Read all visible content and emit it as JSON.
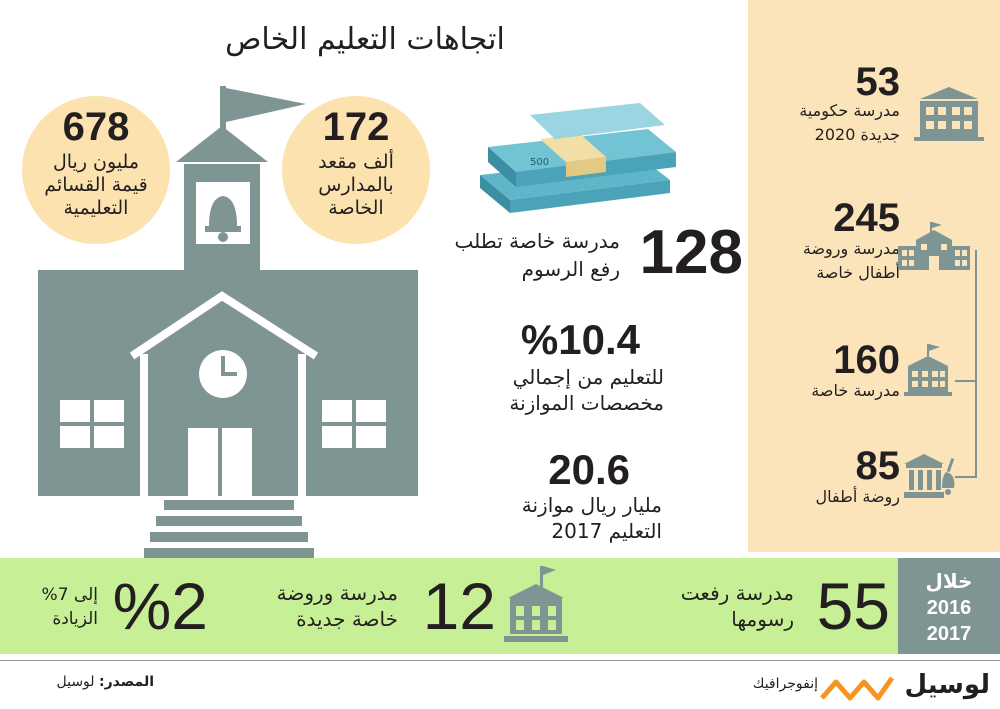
{
  "title": "اتجاهات التعليم الخاص",
  "colors": {
    "panel": "#fbe4b9",
    "circle": "#fbe2ae",
    "building": "#7e9594",
    "band": "#c7ef95",
    "logo": "#f7941d"
  },
  "circles": [
    {
      "value": "678",
      "label_line1": "مليون ريال",
      "label_line2": "قيمة القسائم",
      "label_line3": "التعليمية"
    },
    {
      "value": "172",
      "label_line1": "ألف مقعد",
      "label_line2": "بالمدارس",
      "label_line3": "الخاصة"
    }
  ],
  "center_stats": [
    {
      "value": "128",
      "label_line1": "مدرسة خاصة تطلب",
      "label_line2": "رفع الرسوم"
    },
    {
      "value": "%10.4",
      "label_line1": "للتعليم من إجمالي",
      "label_line2": "مخصصات الموازنة"
    },
    {
      "value": "20.6",
      "label_line1": "مليار ريال موازنة",
      "label_line2": "التعليم 2017"
    }
  ],
  "side_stats": [
    {
      "value": "53",
      "label_line1": "مدرسة حكومية",
      "label_line2": "جديدة 2020",
      "icon": "government-school-icon"
    },
    {
      "value": "245",
      "label_line1": "مدرسة وروضة",
      "label_line2": "أطفال خاصة",
      "icon": "private-school-icon"
    },
    {
      "value": "160",
      "label_line1": "مدرسة خاصة",
      "label_line2": "",
      "icon": "school-flag-icon"
    },
    {
      "value": "85",
      "label_line1": "روضة أطفال",
      "label_line2": "",
      "icon": "kindergarten-bell-icon"
    }
  ],
  "bottom": {
    "period_line1": "خلال",
    "period_line2": "2016",
    "period_line3": "2017",
    "stat1_value": "55",
    "stat1_line1": "مدرسة رفعت",
    "stat1_line2": "رسومها",
    "stat2_value": "12",
    "stat2_line1": "مدرسة وروضة",
    "stat2_line2": "خاصة جديدة",
    "stat3_value": "%2",
    "stat3_line1": "إلى 7%",
    "stat3_line2": "الزيادة"
  },
  "footer": {
    "source_label": "المصدر:",
    "source_value": "لوسيل",
    "infographic_label": "إنفوجرافيك",
    "logo_text": "لوسيل"
  }
}
